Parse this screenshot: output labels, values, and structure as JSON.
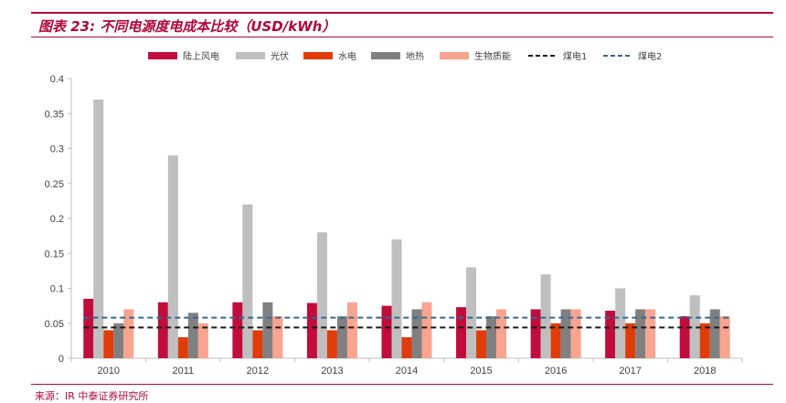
{
  "figure": {
    "title": "图表 23:  不同电源度电成本比较（USD/kWh）",
    "source": "来源：IR 中泰证券研究所"
  },
  "colors": {
    "accent": "#b1063a",
    "axis": "#bfbfbf",
    "text": "#404040"
  },
  "chart_data": {
    "type": "bar",
    "title": "",
    "xlabel": "",
    "ylabel": "",
    "ylim": [
      0,
      0.4
    ],
    "yticks": [
      0,
      0.05,
      0.1,
      0.15,
      0.2,
      0.25,
      0.3,
      0.35,
      0.4
    ],
    "ytick_labels": [
      "0",
      "0.05",
      "0.1",
      "0.15",
      "0.2",
      "0.25",
      "0.3",
      "0.35",
      "0.4"
    ],
    "grid": false,
    "legend_position": "top",
    "categories": [
      "2010",
      "2011",
      "2012",
      "2013",
      "2014",
      "2015",
      "2016",
      "2017",
      "2018"
    ],
    "series": [
      {
        "name": "陆上风电",
        "color": "#c00d3c",
        "values": [
          0.085,
          0.08,
          0.08,
          0.079,
          0.075,
          0.073,
          0.07,
          0.068,
          0.06
        ]
      },
      {
        "name": "光伏",
        "color": "#bfbfbf",
        "values": [
          0.37,
          0.29,
          0.22,
          0.18,
          0.17,
          0.13,
          0.12,
          0.1,
          0.09
        ]
      },
      {
        "name": "水电",
        "color": "#e03c0a",
        "values": [
          0.04,
          0.03,
          0.04,
          0.04,
          0.03,
          0.04,
          0.05,
          0.05,
          0.05
        ]
      },
      {
        "name": "地热",
        "color": "#808080",
        "values": [
          0.05,
          0.065,
          0.08,
          0.06,
          0.07,
          0.06,
          0.07,
          0.07,
          0.07
        ]
      },
      {
        "name": "生物质能",
        "color": "#f8a48f",
        "values": [
          0.07,
          0.05,
          0.06,
          0.08,
          0.08,
          0.07,
          0.07,
          0.07,
          0.06
        ]
      }
    ],
    "reference_lines": [
      {
        "name": "煤电1",
        "color": "#1a1a1a",
        "value": 0.044
      },
      {
        "name": "煤电2",
        "color": "#31699a",
        "value": 0.058
      }
    ]
  }
}
